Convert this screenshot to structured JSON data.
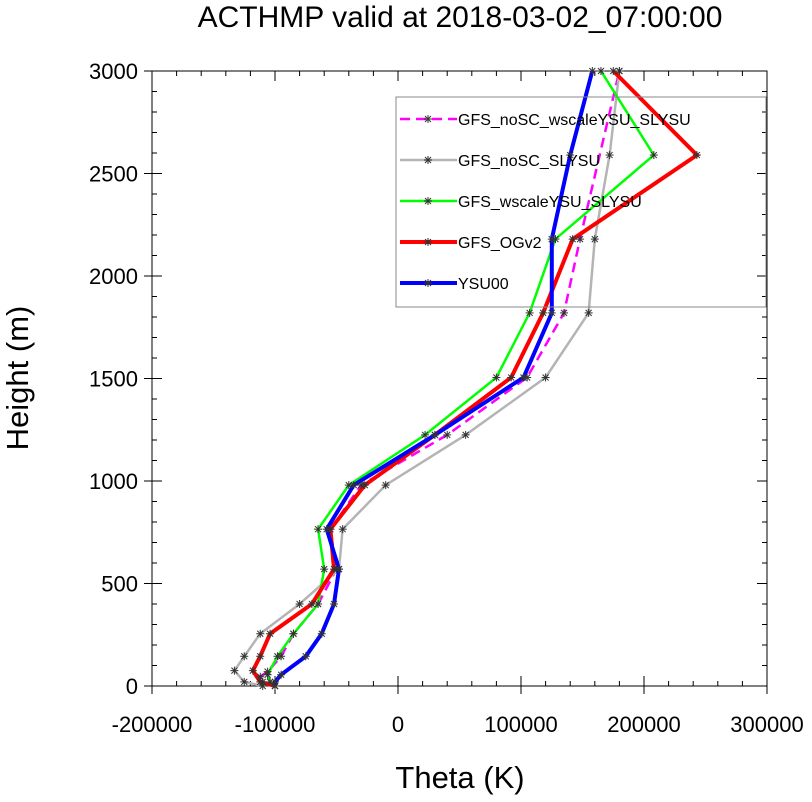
{
  "chart_data": {
    "type": "line",
    "title": "ACTHMP valid at 2018-03-02_07:00:00",
    "xlabel": "Theta (K)",
    "ylabel": "Height (m)",
    "xlim": [
      -200000,
      300000
    ],
    "ylim": [
      0,
      3000
    ],
    "xticks": [
      -200000,
      -100000,
      0,
      100000,
      200000,
      300000
    ],
    "xtick_labels": [
      "-200000",
      "-100000",
      "0",
      "100000",
      "200000",
      "300000"
    ],
    "yticks": [
      0,
      500,
      1000,
      1500,
      2000,
      2500,
      3000
    ],
    "ytick_labels": [
      "0",
      "500",
      "1000",
      "1500",
      "2000",
      "2500",
      "3000"
    ],
    "grid": false,
    "legend_position": "top-right",
    "series": [
      {
        "name": "GFS_noSC_wscaleYSU_SLYSU",
        "color": "#ff00ff",
        "dash": "dashed",
        "width": 2.5,
        "points": [
          [
            -100000,
            0
          ],
          [
            -110000,
            20
          ],
          [
            -112000,
            45
          ],
          [
            -106000,
            70
          ],
          [
            -95000,
            145
          ],
          [
            -85000,
            255
          ],
          [
            -65000,
            400
          ],
          [
            -50000,
            570
          ],
          [
            -55000,
            765
          ],
          [
            -30000,
            980
          ],
          [
            40000,
            1225
          ],
          [
            105000,
            1505
          ],
          [
            135000,
            1820
          ],
          [
            148000,
            2180
          ],
          [
            180000,
            3000
          ]
        ]
      },
      {
        "name": "GFS_noSC_SLYSU",
        "color": "#b4b4b4",
        "dash": "solid",
        "width": 2.5,
        "points": [
          [
            -110000,
            0
          ],
          [
            -125000,
            20
          ],
          [
            -133000,
            75
          ],
          [
            -125000,
            145
          ],
          [
            -112000,
            255
          ],
          [
            -80000,
            400
          ],
          [
            -48000,
            570
          ],
          [
            -45000,
            765
          ],
          [
            -10000,
            980
          ],
          [
            55000,
            1225
          ],
          [
            120000,
            1505
          ],
          [
            155000,
            1820
          ],
          [
            160000,
            2180
          ],
          [
            172000,
            2590
          ],
          [
            180000,
            3000
          ]
        ]
      },
      {
        "name": "GFS_wscaleYSU_SLYSU",
        "color": "#00ff00",
        "dash": "solid",
        "width": 2.5,
        "points": [
          [
            -100000,
            0
          ],
          [
            -104000,
            20
          ],
          [
            -106000,
            55
          ],
          [
            -98000,
            145
          ],
          [
            -85000,
            255
          ],
          [
            -65000,
            400
          ],
          [
            -60000,
            570
          ],
          [
            -65000,
            765
          ],
          [
            -40000,
            980
          ],
          [
            22000,
            1225
          ],
          [
            80000,
            1505
          ],
          [
            107000,
            1820
          ],
          [
            128000,
            2180
          ],
          [
            208000,
            2590
          ],
          [
            165000,
            3000
          ]
        ]
      },
      {
        "name": "GFS_OGv2",
        "color": "#ff0000",
        "dash": "solid",
        "width": 4,
        "points": [
          [
            -100000,
            0
          ],
          [
            -112000,
            20
          ],
          [
            -118000,
            75
          ],
          [
            -112000,
            145
          ],
          [
            -104000,
            255
          ],
          [
            -70000,
            400
          ],
          [
            -52000,
            570
          ],
          [
            -55000,
            765
          ],
          [
            -27000,
            980
          ],
          [
            30000,
            1225
          ],
          [
            92000,
            1505
          ],
          [
            118000,
            1820
          ],
          [
            142000,
            2180
          ],
          [
            243000,
            2590
          ],
          [
            175000,
            3000
          ]
        ]
      },
      {
        "name": "YSU00",
        "color": "#0000ff",
        "dash": "solid",
        "width": 4,
        "points": [
          [
            -100000,
            0
          ],
          [
            -100000,
            20
          ],
          [
            -95000,
            55
          ],
          [
            -75000,
            145
          ],
          [
            -62000,
            255
          ],
          [
            -52000,
            400
          ],
          [
            -48000,
            570
          ],
          [
            -58000,
            765
          ],
          [
            -36000,
            980
          ],
          [
            30000,
            1225
          ],
          [
            102000,
            1505
          ],
          [
            125000,
            1820
          ],
          [
            125000,
            2180
          ],
          [
            140000,
            2590
          ],
          [
            158000,
            3000
          ]
        ]
      }
    ]
  }
}
